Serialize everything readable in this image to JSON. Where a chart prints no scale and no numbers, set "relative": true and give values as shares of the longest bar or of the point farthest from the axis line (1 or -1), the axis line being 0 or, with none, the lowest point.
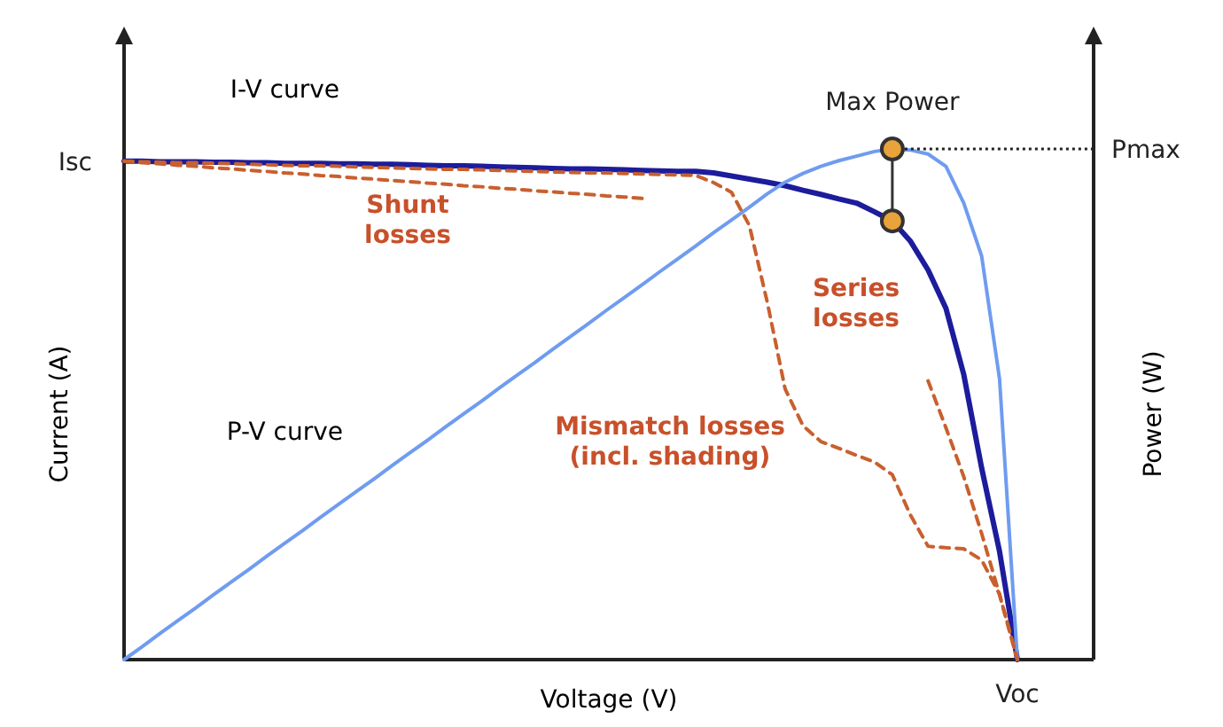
{
  "chart_data": {
    "type": "line",
    "relative": true,
    "xlabel": "Voltage (V)",
    "ylabel": "Current (A)",
    "y2label": "Power (W)",
    "line_style": "solid",
    "marker": "none",
    "categories": [
      null,
      null,
      null,
      null,
      null,
      null,
      null,
      null,
      null,
      null,
      null,
      null,
      null,
      null,
      null,
      null,
      null,
      null,
      null,
      null,
      null,
      null,
      null,
      null,
      null,
      null,
      null,
      null,
      null,
      null,
      null,
      null,
      null,
      null,
      null,
      null,
      null,
      null,
      null,
      null,
      null,
      null,
      null,
      null,
      null,
      null,
      null,
      null,
      null,
      null,
      null
    ],
    "series": [
      {
        "name": "I-V curve",
        "color": "#1c1c9c",
        "values": [
          0.976,
          0.976,
          0.975,
          0.975,
          0.975,
          0.974,
          0.974,
          0.973,
          0.973,
          0.972,
          0.972,
          0.972,
          0.971,
          0.971,
          0.97,
          0.97,
          0.969,
          0.968,
          0.967,
          0.967,
          0.966,
          0.965,
          0.964,
          0.963,
          0.962,
          0.961,
          0.961,
          0.96,
          0.959,
          0.958,
          0.957,
          0.956,
          0.956,
          0.953,
          0.947,
          0.941,
          0.935,
          0.928,
          0.919,
          0.911,
          0.902,
          0.894,
          0.877,
          0.859,
          0.82,
          0.763,
          0.688,
          0.558,
          0.375,
          0.212,
          0
        ]
      },
      {
        "name": "P-V curve",
        "color": "#6f9cf0",
        "values": [
          0,
          0.025,
          0.051,
          0.076,
          0.101,
          0.127,
          0.152,
          0.177,
          0.203,
          0.228,
          0.253,
          0.279,
          0.304,
          0.329,
          0.354,
          0.38,
          0.405,
          0.43,
          0.456,
          0.481,
          0.506,
          0.532,
          0.557,
          0.582,
          0.608,
          0.633,
          0.658,
          0.684,
          0.709,
          0.734,
          0.76,
          0.785,
          0.81,
          0.836,
          0.861,
          0.886,
          0.912,
          0.935,
          0.952,
          0.966,
          0.977,
          0.986,
          0.995,
          1,
          0.998,
          0.99,
          0.966,
          0.894,
          0.79,
          0.55,
          0
        ]
      },
      {
        "color": "#c8602e",
        "line_style": "dashed",
        "values": [
          0.976,
          0.973,
          0.971,
          0.968,
          0.966,
          0.963,
          0.961,
          0.958,
          0.956,
          0.953,
          0.951,
          0.948,
          0.946,
          0.943,
          0.941,
          0.938,
          0.936,
          0.933,
          0.931,
          0.928,
          0.926,
          0.923,
          0.921,
          0.918,
          0.916,
          0.913,
          0.911,
          0.908,
          0.906,
          0.903,
          null,
          null,
          null,
          null,
          null,
          null,
          null,
          null,
          null,
          null,
          null,
          null,
          null,
          null,
          null,
          null,
          null,
          null,
          null,
          null,
          null
        ]
      },
      {
        "color": "#c8602e",
        "line_style": "dashed",
        "values": [
          0.976,
          0.975,
          0.974,
          0.973,
          0.973,
          0.972,
          0.971,
          0.97,
          0.969,
          0.968,
          0.967,
          0.967,
          0.966,
          0.965,
          0.964,
          0.963,
          0.962,
          0.961,
          0.96,
          0.96,
          0.959,
          0.958,
          0.957,
          0.956,
          0.955,
          0.954,
          0.953,
          0.953,
          0.952,
          0.951,
          0.95,
          0.949,
          0.948,
          0.934,
          0.915,
          0.85,
          0.7,
          0.53,
          0.458,
          0.427,
          0.414,
          0.4,
          0.387,
          0.362,
          0.284,
          0.222,
          0.219,
          0.217,
          0.195,
          0.128,
          0
        ]
      },
      {
        "color": "#c8602e",
        "line_style": "dashed",
        "values": [
          null,
          null,
          null,
          null,
          null,
          null,
          null,
          null,
          null,
          null,
          null,
          null,
          null,
          null,
          null,
          null,
          null,
          null,
          null,
          null,
          null,
          null,
          null,
          null,
          null,
          null,
          null,
          null,
          null,
          null,
          null,
          null,
          null,
          null,
          null,
          null,
          null,
          null,
          null,
          null,
          null,
          null,
          null,
          null,
          null,
          0.546,
          0.454,
          0.358,
          0.247,
          0.127,
          0
        ]
      }
    ],
    "annotations": [
      "Shunt\nlosses",
      "Series\nlosses",
      "Mismatch losses\n(incl. shading)",
      "Max Power",
      "Isc",
      "Pmax",
      "Voc"
    ]
  }
}
